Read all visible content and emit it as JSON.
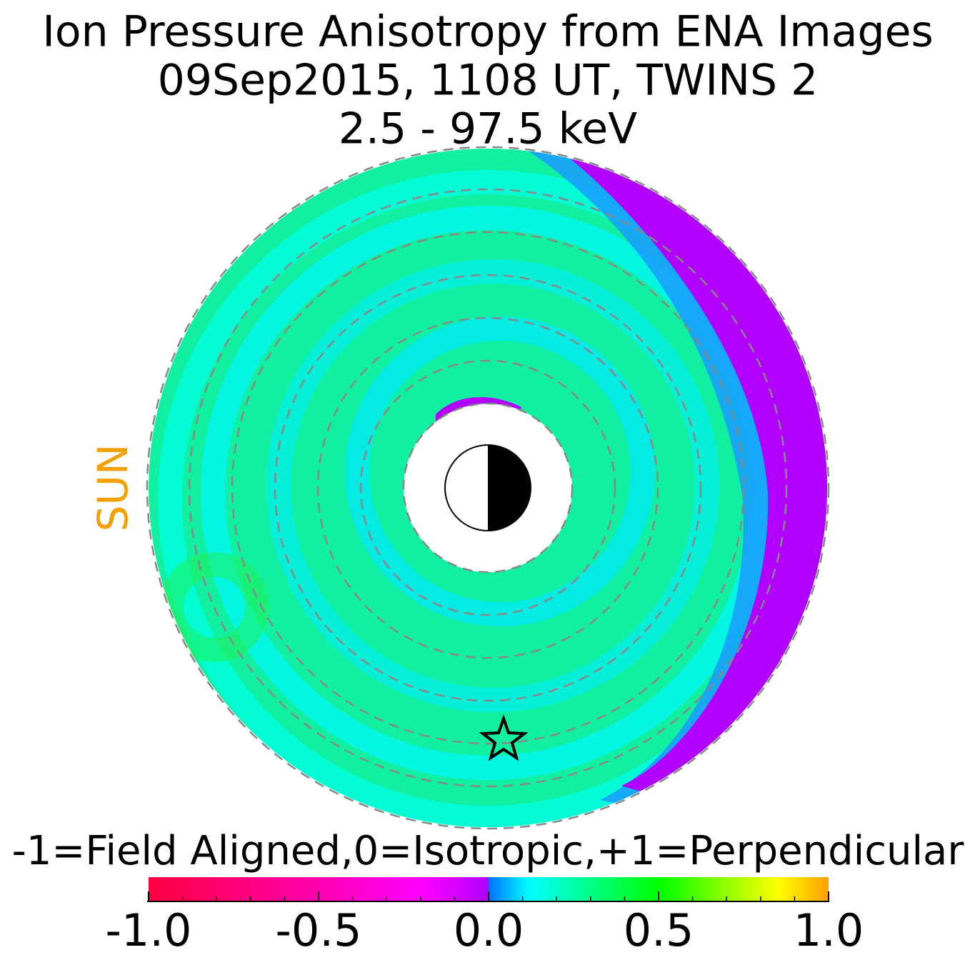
{
  "chart_data": {
    "type": "polar_map",
    "title": "Ion Pressure Anisotropy from  ENA Images",
    "subtitle": "09Sep2015, 1108 UT,  TWINS 2",
    "energy": "2.5 - 97.5 keV",
    "annotation": "SUN",
    "colorbar": {
      "label": "-1=Field Aligned,0=Isotropic,+1=Perpendicular",
      "lim": [
        -1,
        1
      ],
      "ticks": [
        {
          "value": -1,
          "label": "-1.0"
        },
        -0.5,
        {
          "value": 0,
          "label": "0.0"
        },
        0.5,
        {
          "value": 1,
          "label": "1.0"
        }
      ],
      "minor_ticks": [
        -0.9,
        -0.8,
        -0.7,
        -0.6,
        -0.4,
        -0.3,
        -0.2,
        -0.1,
        0.1,
        0.2,
        0.3,
        0.4,
        0.6,
        0.7,
        0.8,
        0.9
      ],
      "stops": [
        {
          "value": -1,
          "color": "#ff0040"
        },
        {
          "value": -0.5,
          "color": "#ff00b0"
        },
        {
          "value": -0.2,
          "color": "#ff00ff"
        },
        {
          "value": 0,
          "color": "#b000ff"
        },
        {
          "value": 0,
          "color": "#0070ff"
        },
        {
          "value": 0.12,
          "color": "#00ffff"
        },
        {
          "value": 0.5,
          "color": "#00ff00"
        },
        {
          "value": 0.85,
          "color": "#ffff00"
        },
        {
          "value": 1,
          "color": "#ffa000"
        }
      ]
    }
  }
}
